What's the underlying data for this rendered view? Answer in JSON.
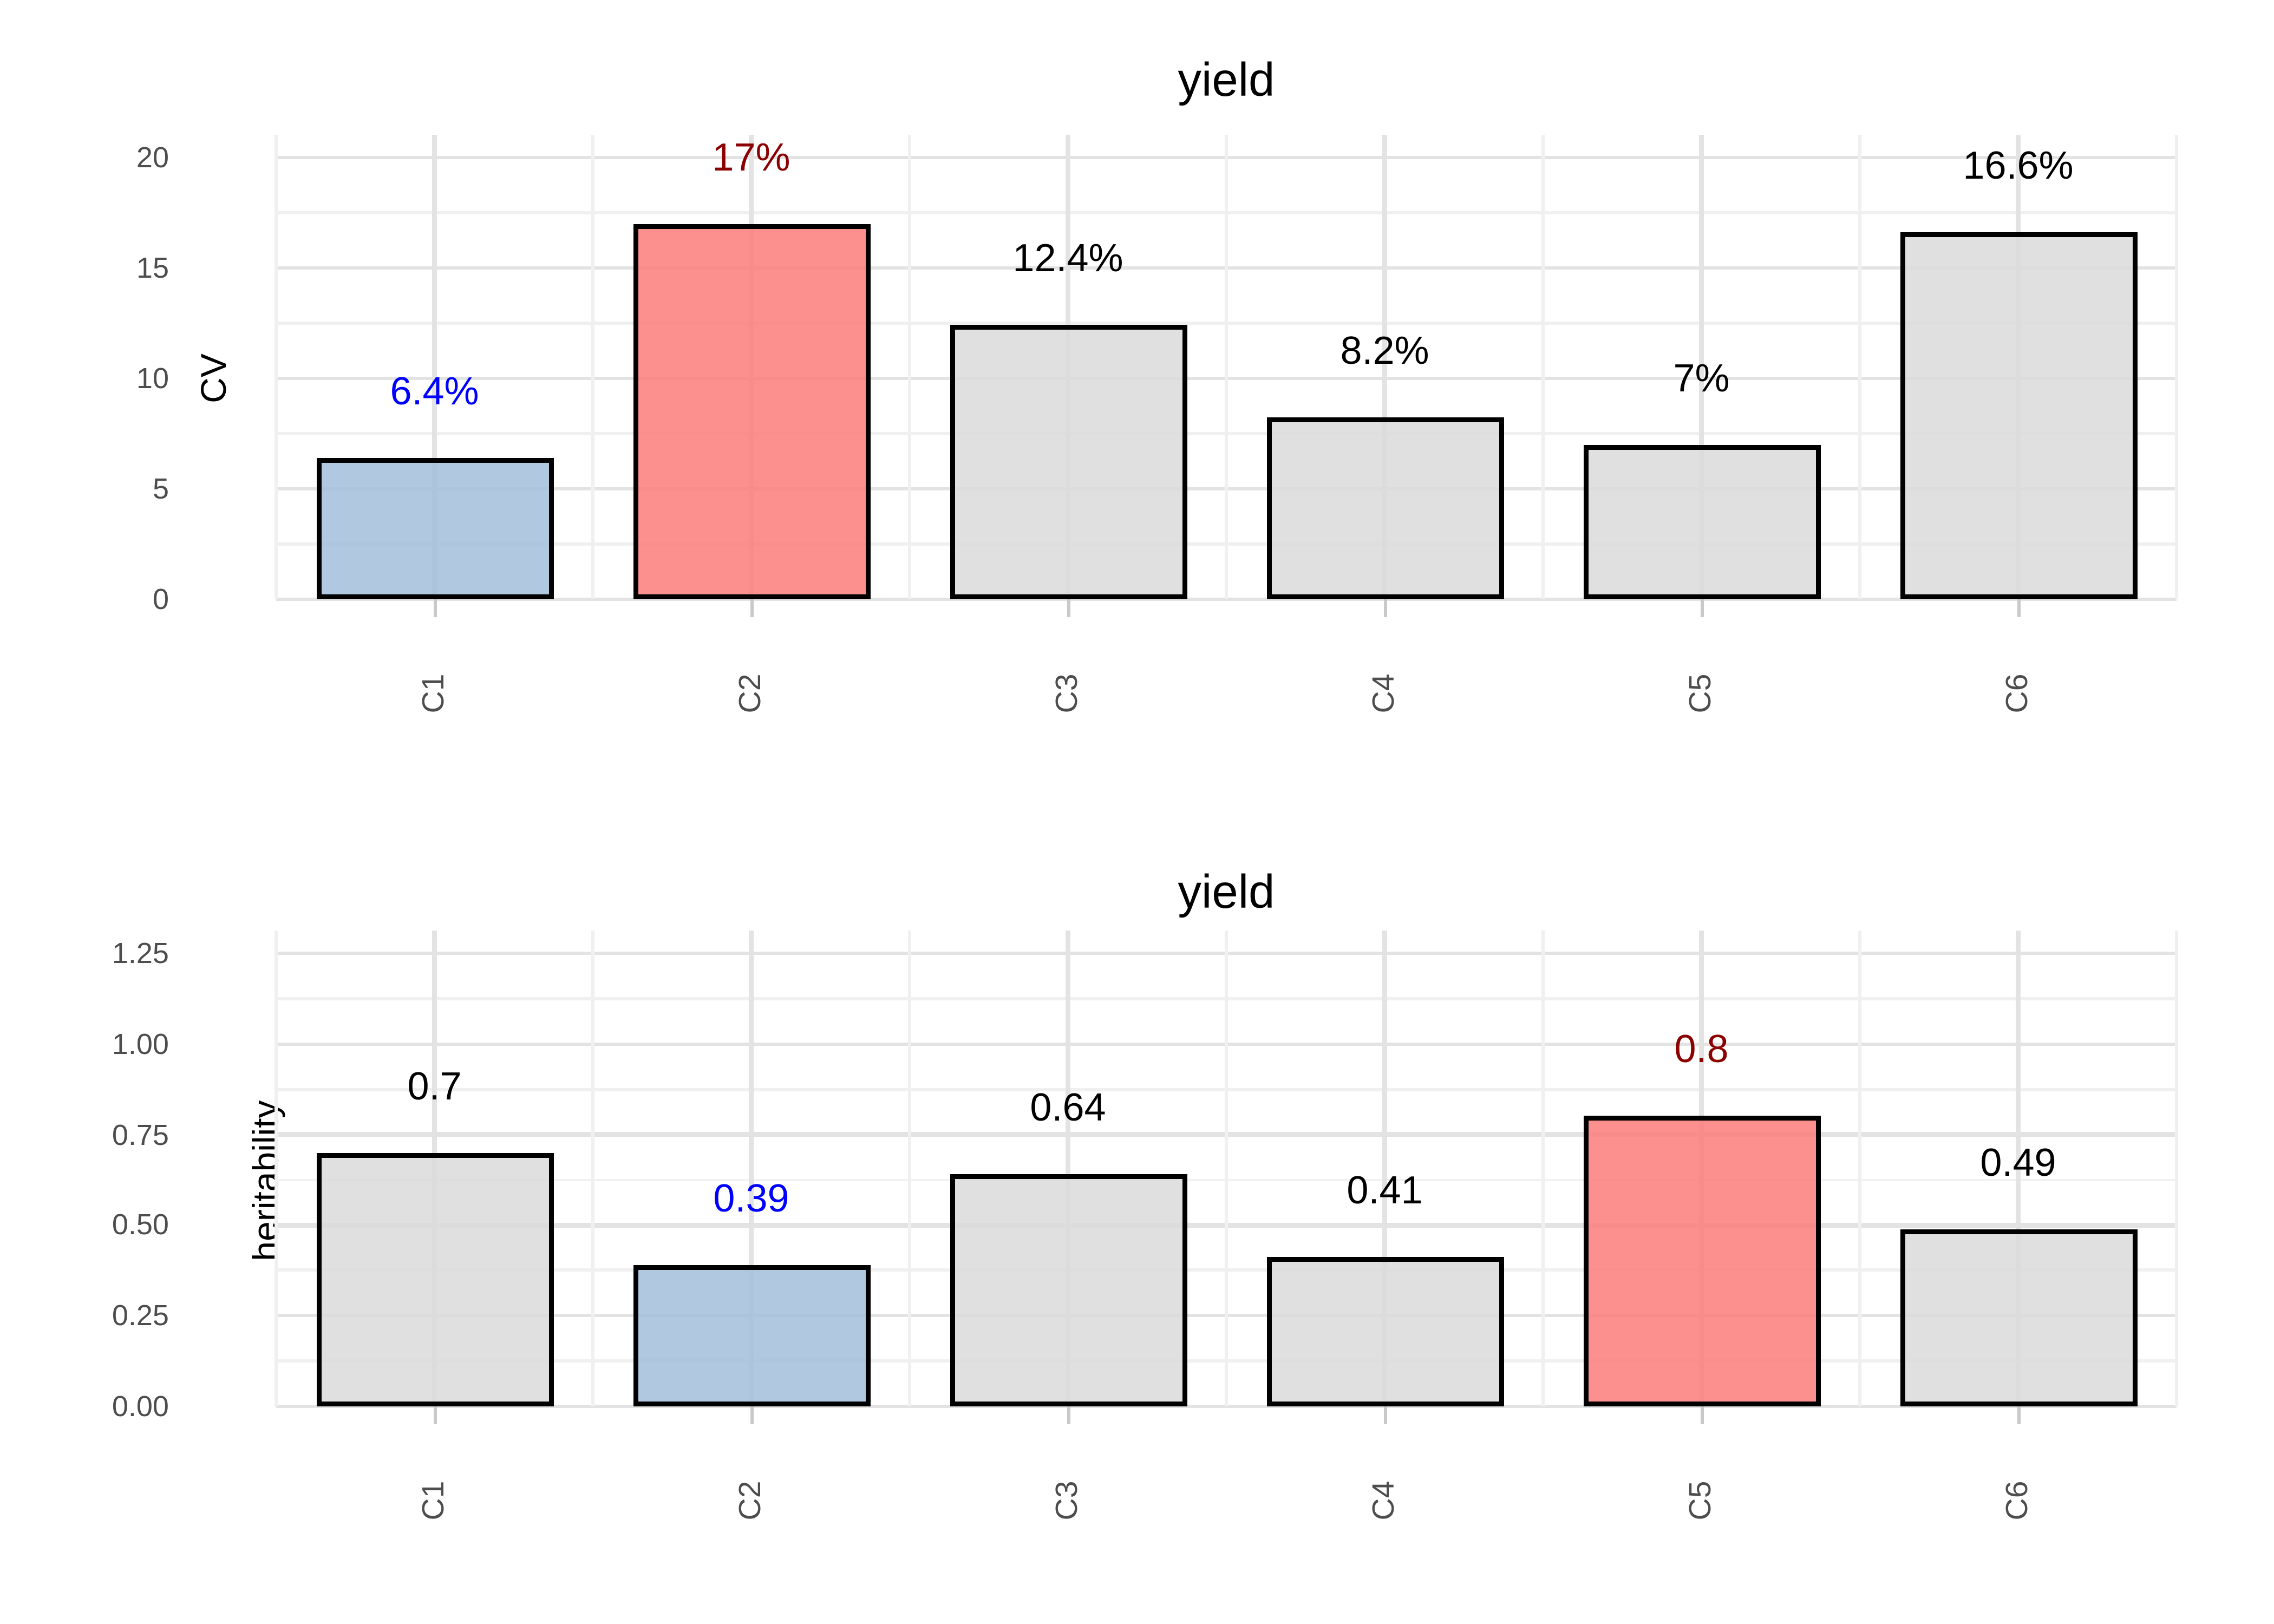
{
  "figure_title": "yield",
  "style": {
    "background": "#ffffff",
    "grid_major": "#e3e3e3",
    "grid_minor": "#f0f0f0",
    "tick_text_color": "#4d4d4d",
    "axis_title_color": "#000000",
    "title_color": "#000000",
    "bar_border_color": "#000000",
    "tick_mark_color": "#c9c9c9",
    "highlight_low_fill": "#a2c0dc",
    "highlight_high_fill": "#fb7d7a",
    "default_fill": "#dbdbdb",
    "label_blue": "#0000ff",
    "label_dark_red": "#8b0000",
    "label_black": "#000000"
  },
  "chart_data": [
    {
      "type": "bar",
      "title": "yield",
      "xlabel": "",
      "ylabel": "CV",
      "categories": [
        "C1",
        "C2",
        "C3",
        "C4",
        "C5",
        "C6"
      ],
      "values": [
        6.4,
        17,
        12.4,
        8.2,
        7,
        16.6
      ],
      "bar_labels": [
        "6.4%",
        "17%",
        "12.4%",
        "8.2%",
        "7%",
        "16.6%"
      ],
      "bar_label_colors": [
        "#0000ff",
        "#8b0000",
        "#000000",
        "#000000",
        "#000000",
        "#000000"
      ],
      "bar_colors": [
        "#a2c0dc",
        "#fb7d7a",
        "#dbdbdb",
        "#dbdbdb",
        "#dbdbdb",
        "#dbdbdb"
      ],
      "ylim": [
        0,
        20
      ],
      "yticks": [
        0,
        5,
        10,
        15,
        20
      ],
      "ytick_labels": [
        "0",
        "5",
        "10",
        "15",
        "20"
      ],
      "grid": "on",
      "legend": "none"
    },
    {
      "type": "bar",
      "title": "yield",
      "xlabel": "",
      "ylabel": "heritability",
      "categories": [
        "C1",
        "C2",
        "C3",
        "C4",
        "C5",
        "C6"
      ],
      "values": [
        0.7,
        0.39,
        0.64,
        0.41,
        0.8,
        0.49
      ],
      "bar_labels": [
        "0.7",
        "0.39",
        "0.64",
        "0.41",
        "0.8",
        "0.49"
      ],
      "bar_label_colors": [
        "#000000",
        "#0000ff",
        "#000000",
        "#000000",
        "#8b0000",
        "#000000"
      ],
      "bar_colors": [
        "#dbdbdb",
        "#a2c0dc",
        "#dbdbdb",
        "#dbdbdb",
        "#fb7d7a",
        "#dbdbdb"
      ],
      "ylim": [
        0,
        1.25
      ],
      "yticks": [
        0,
        0.25,
        0.5,
        0.75,
        1,
        1.25
      ],
      "ytick_labels": [
        "0.00",
        "0.25",
        "0.50",
        "0.75",
        "1.00",
        "1.25"
      ],
      "grid": "on",
      "legend": "none"
    }
  ]
}
